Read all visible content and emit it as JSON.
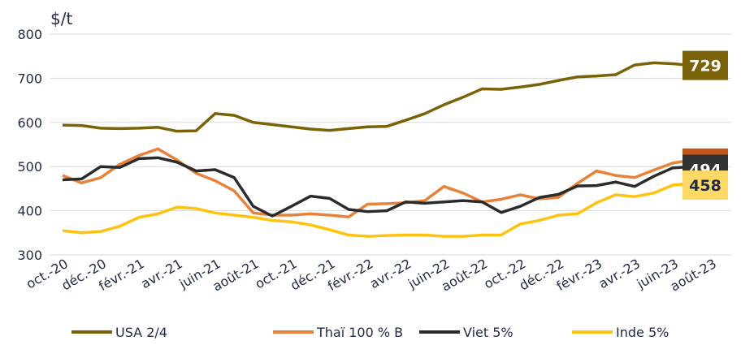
{
  "chart_data": {
    "type": "line",
    "y_label": "$/t",
    "categories": [
      "oct.-20",
      null,
      "déc.-20",
      null,
      "févr.-21",
      null,
      "avr.-21",
      null,
      "juin-21",
      null,
      "août-21",
      null,
      "oct.-21",
      null,
      "déc.-21",
      null,
      "févr.-22",
      null,
      "avr.-22",
      null,
      "juin-22",
      null,
      "août-22",
      null,
      "oct.-22",
      null,
      "déc.-22",
      null,
      "févr.-23",
      null,
      "avr.-23",
      null,
      "juin-23",
      null,
      "août-23"
    ],
    "series": [
      {
        "name": "USA 2/4",
        "color": "#7a6208",
        "label_bg": "#7a6208",
        "values": [
          594,
          593,
          587,
          586,
          587,
          589,
          580,
          581,
          620,
          616,
          600,
          595,
          590,
          585,
          582,
          586,
          590,
          591,
          605,
          620,
          640,
          657,
          676,
          675,
          680,
          686,
          695,
          703,
          705,
          708,
          730,
          735,
          733,
          729,
          729
        ]
      },
      {
        "name": "Thaï 100 % B",
        "color": "#e8823a",
        "label_bg": "#c8561a",
        "values": [
          480,
          463,
          475,
          505,
          525,
          540,
          515,
          485,
          468,
          445,
          395,
          390,
          390,
          393,
          390,
          386,
          415,
          416,
          418,
          423,
          455,
          440,
          420,
          426,
          436,
          427,
          430,
          462,
          490,
          480,
          475,
          492,
          508,
          515,
          508
        ]
      },
      {
        "name": "Viet 5%",
        "color": "#2b2b2b",
        "label_bg": "#333333",
        "values": [
          470,
          472,
          500,
          498,
          518,
          520,
          510,
          490,
          493,
          475,
          410,
          388,
          410,
          433,
          428,
          403,
          398,
          400,
          420,
          417,
          420,
          423,
          420,
          396,
          410,
          430,
          437,
          456,
          457,
          465,
          455,
          478,
          497,
          500,
          494
        ]
      },
      {
        "name": "Inde 5%",
        "color": "#ffc20e",
        "label_bg": "#ffd966",
        "values": [
          355,
          350,
          353,
          365,
          385,
          393,
          408,
          405,
          395,
          390,
          385,
          378,
          375,
          368,
          357,
          345,
          342,
          344,
          345,
          345,
          342,
          342,
          345,
          345,
          370,
          378,
          390,
          393,
          418,
          436,
          432,
          440,
          458,
          462,
          458
        ]
      }
    ],
    "ylim": [
      300,
      800
    ],
    "yticks": [
      300,
      400,
      500,
      600,
      700,
      800
    ],
    "grid": true,
    "legend": "bottom"
  }
}
